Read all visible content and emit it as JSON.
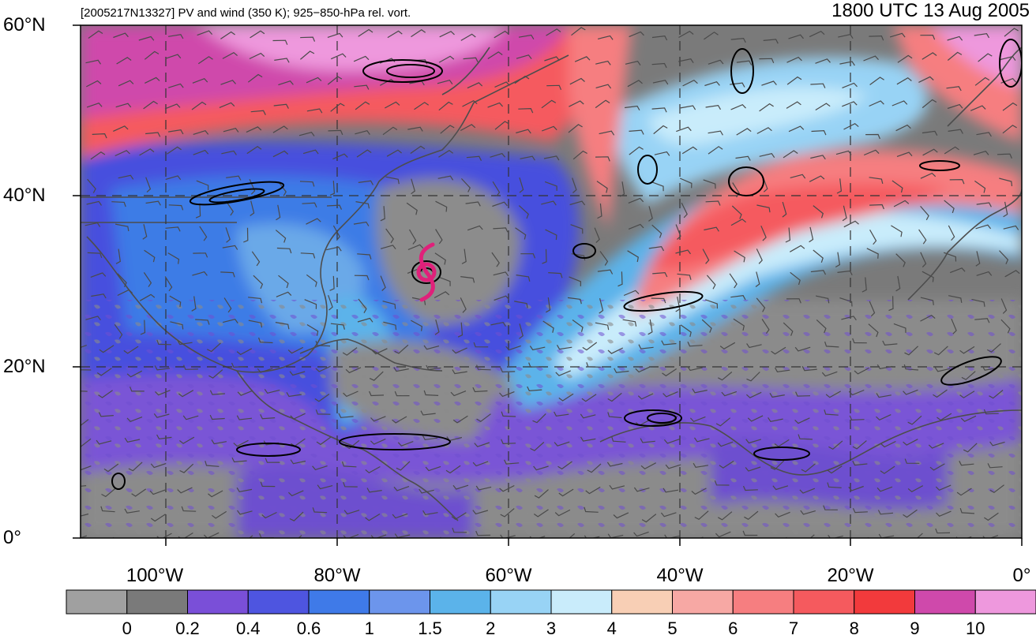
{
  "header": {
    "left_title": "[2005217N13327] PV and wind (350 K); 925−850-hPa rel. vort.",
    "right_title": "1800 UTC 13 Aug 2005"
  },
  "map": {
    "lat_labels": [
      "60°N",
      "40°N",
      "20°N",
      "0°"
    ],
    "lon_labels": [
      "100°W",
      "80°W",
      "60°W",
      "40°W",
      "20°W",
      "0°"
    ],
    "lon_values": [
      -100,
      -80,
      -60,
      -40,
      -20,
      0
    ],
    "lat_values": [
      60,
      40,
      20,
      0
    ],
    "extent": {
      "lon_min": -110,
      "lon_max": 0,
      "lat_min": 0,
      "lat_max": 60
    },
    "storm_symbol": {
      "lon": -69,
      "lat": 31,
      "color": "#e0207a"
    },
    "icons": [
      "tropical-cyclone-icon",
      "wind-barb-icon"
    ]
  },
  "colorbar": {
    "labels": [
      "0",
      "0.2",
      "0.4",
      "0.6",
      "1",
      "1.5",
      "2",
      "3",
      "4",
      "5",
      "6",
      "7",
      "8",
      "9",
      "10"
    ],
    "colors": [
      "#a0a0a0",
      "#7a7a7a",
      "#7a4fd8",
      "#4e55e0",
      "#3f7ae8",
      "#6c95ec",
      "#5bb3ea",
      "#98d3f5",
      "#c9ecfb",
      "#f8cfb5",
      "#f7a8a4",
      "#f67e80",
      "#f55a5e",
      "#f23a3c",
      "#cf49ab",
      "#ee98dd"
    ]
  }
}
